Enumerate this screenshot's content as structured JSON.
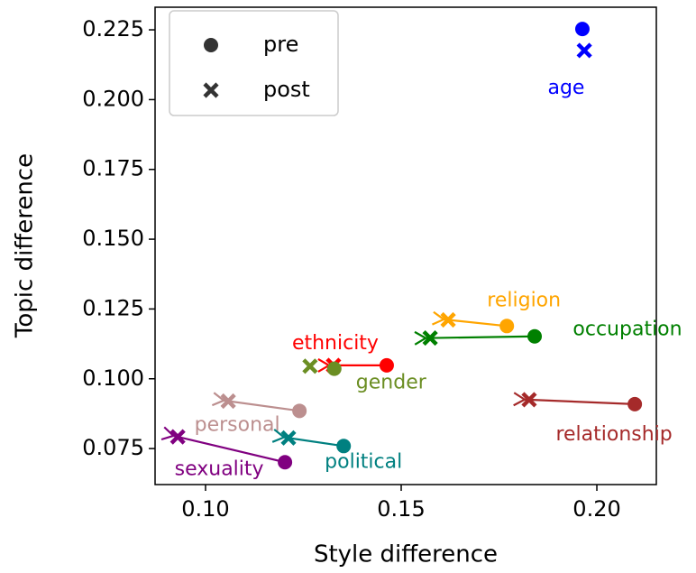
{
  "chart_data": {
    "type": "scatter",
    "xlabel": "Style difference",
    "ylabel": "Topic difference",
    "xlim": [
      0.0871,
      0.2152
    ],
    "ylim": [
      0.0621,
      0.2331
    ],
    "xticks": [
      {
        "value": 0.1,
        "label": "0.10"
      },
      {
        "value": 0.15,
        "label": "0.15"
      },
      {
        "value": 0.2,
        "label": "0.20"
      }
    ],
    "yticks": [
      0.075,
      {
        "value": 0.1,
        "label": "0.100"
      },
      0.125,
      {
        "value": 0.15,
        "label": "0.150"
      },
      0.175,
      {
        "value": 0.2,
        "label": "0.200"
      },
      0.225
    ],
    "legend": [
      "pre",
      "post"
    ],
    "legend_loc": "upper left",
    "series": [
      {
        "name": "age",
        "color": "#0000ff",
        "x": [
          0.1963,
          0.1968
        ],
        "y": [
          0.2253,
          0.2176
        ]
      },
      {
        "name": "religion",
        "color": "#ffa500",
        "x": [
          0.177,
          0.162
        ],
        "y": [
          0.1189,
          0.1211
        ]
      },
      {
        "name": "occupation",
        "color": "#008000",
        "x": [
          0.1841,
          0.1574
        ],
        "y": [
          0.1152,
          0.1146
        ]
      },
      {
        "name": "ethnicity",
        "color": "#ff0000",
        "x": [
          0.1463,
          0.1327
        ],
        "y": [
          0.1048,
          0.1048
        ]
      },
      {
        "name": "gender",
        "color": "#6b8e23",
        "x": [
          0.1329,
          0.1267
        ],
        "y": [
          0.1036,
          0.1045
        ]
      },
      {
        "name": "relationship",
        "color": "#a52a2a",
        "x": [
          0.2097,
          0.1827
        ],
        "y": [
          0.0909,
          0.0925
        ]
      },
      {
        "name": "personal",
        "color": "#bc8f8f",
        "x": [
          0.124,
          0.1058
        ],
        "y": [
          0.0885,
          0.092
        ]
      },
      {
        "name": "political",
        "color": "#008080",
        "x": [
          0.1353,
          0.1212
        ],
        "y": [
          0.0759,
          0.0788
        ]
      },
      {
        "name": "sexuality",
        "color": "#800080",
        "x": [
          0.1203,
          0.0929
        ],
        "y": [
          0.0701,
          0.0792
        ]
      }
    ]
  }
}
